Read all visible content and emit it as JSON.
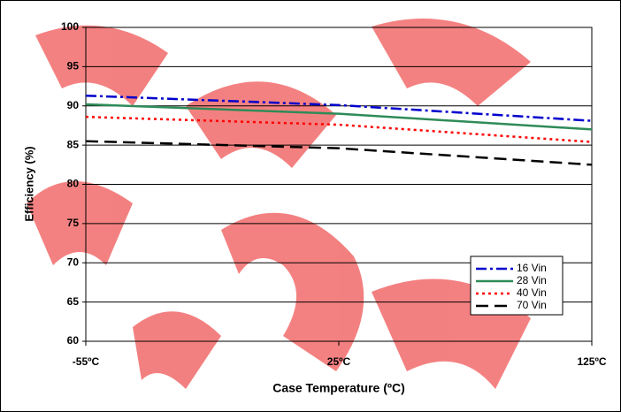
{
  "chart_data": {
    "type": "line",
    "x_title": "Case Temperature (ºC)",
    "y_title": "Efficiency (%)",
    "categories": [
      "-55ºC",
      "25ºC",
      "125ºC"
    ],
    "series": [
      {
        "name": "16 Vin",
        "color": "#0000cc",
        "style": "dashdot",
        "values": [
          91.3,
          90.1,
          88.1
        ]
      },
      {
        "name": "28 Vin",
        "color": "#2e8b57",
        "style": "solid",
        "values": [
          90.2,
          89.0,
          87.0
        ]
      },
      {
        "name": "40 Vin",
        "color": "#ff0000",
        "style": "dotted",
        "values": [
          88.6,
          87.6,
          85.4
        ]
      },
      {
        "name": "70 Vin",
        "color": "#000000",
        "style": "dashed",
        "values": [
          85.5,
          84.6,
          82.5
        ]
      }
    ],
    "ylim": [
      60,
      100
    ],
    "yticks": [
      60,
      65,
      70,
      75,
      80,
      85,
      90,
      95,
      100
    ],
    "grid": true,
    "legend": "lower right"
  }
}
